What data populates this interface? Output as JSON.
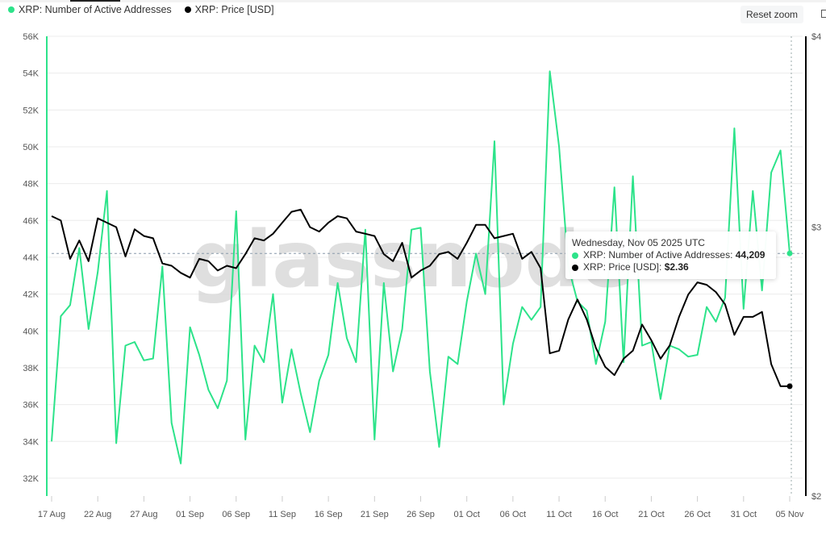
{
  "legend": [
    {
      "label": "XRP: Number of Active Addresses",
      "color": "#2de38a"
    },
    {
      "label": "XRP: Price [USD]",
      "color": "#000000"
    }
  ],
  "controls": {
    "reset_zoom": "Reset zoom"
  },
  "watermark": "glassnode",
  "tooltip": {
    "date": "Wednesday, Nov 05 2025 UTC",
    "rows": [
      {
        "label": "XRP: Number of Active Addresses:",
        "value": "44,209",
        "color": "#2de38a"
      },
      {
        "label": "XRP: Price [USD]:",
        "value": "$2.36",
        "color": "#000000"
      }
    ]
  },
  "colors": {
    "active_addresses": "#2de38a",
    "price": "#000000",
    "grid": "#ececec",
    "axis_text": "#555555"
  },
  "chart_data": {
    "type": "line",
    "title": "",
    "xlabel": "",
    "ylabel": "Number of Active Addresses",
    "y2label": "Price [USD]",
    "ylim": [
      31000,
      56000
    ],
    "y2lim": [
      2,
      4
    ],
    "y2scale": "log",
    "grid": true,
    "legend_position": "top-left",
    "x_start": "2025-08-17",
    "x_end": "2025-11-05",
    "x_ticks": [
      "17 Aug",
      "22 Aug",
      "27 Aug",
      "01 Sep",
      "06 Sep",
      "11 Sep",
      "16 Sep",
      "21 Sep",
      "26 Sep",
      "01 Oct",
      "06 Oct",
      "11 Oct",
      "16 Oct",
      "21 Oct",
      "26 Oct",
      "31 Oct",
      "05 Nov"
    ],
    "y_ticks": [
      "32K",
      "34K",
      "36K",
      "38K",
      "40K",
      "42K",
      "44K",
      "46K",
      "48K",
      "50K",
      "52K",
      "54K",
      "56K"
    ],
    "y2_ticks": [
      "$2",
      "$3",
      "$4"
    ],
    "series": [
      {
        "name": "XRP: Number of Active Addresses",
        "axis": "left",
        "values": [
          34000,
          40800,
          41400,
          44500,
          40100,
          43200,
          47600,
          33900,
          39200,
          39400,
          38400,
          38500,
          43500,
          35000,
          32800,
          40200,
          38700,
          36800,
          35800,
          37300,
          46500,
          34100,
          39200,
          38300,
          42000,
          36100,
          39000,
          36600,
          34500,
          37300,
          38700,
          42600,
          39600,
          38300,
          45500,
          34100,
          42600,
          37800,
          40100,
          45500,
          45600,
          37800,
          33700,
          38600,
          38200,
          41600,
          44200,
          42000,
          50300,
          36000,
          39300,
          41300,
          40600,
          41300,
          54100,
          50000,
          43500,
          41600,
          41100,
          38200,
          40500,
          47800,
          38300,
          48400,
          39200,
          39400,
          36300,
          39200,
          39000,
          38600,
          38700,
          41300,
          40500,
          41800,
          51000,
          41200,
          47600,
          42200,
          48600,
          49800,
          44209
        ]
      },
      {
        "name": "XRP: Price [USD]",
        "axis": "right",
        "values": [
          3.05,
          3.03,
          2.86,
          2.94,
          2.85,
          3.04,
          3.02,
          3.0,
          2.87,
          2.99,
          2.96,
          2.95,
          2.84,
          2.83,
          2.8,
          2.78,
          2.86,
          2.85,
          2.81,
          2.83,
          2.82,
          2.88,
          2.95,
          2.94,
          2.97,
          3.02,
          3.07,
          3.08,
          3.0,
          2.98,
          3.02,
          3.05,
          3.04,
          2.98,
          2.97,
          2.96,
          2.88,
          2.85,
          2.93,
          2.78,
          2.81,
          2.83,
          2.88,
          2.89,
          2.86,
          2.93,
          3.01,
          3.01,
          2.95,
          2.96,
          2.97,
          2.86,
          2.89,
          2.82,
          2.48,
          2.49,
          2.61,
          2.69,
          2.61,
          2.5,
          2.43,
          2.4,
          2.46,
          2.49,
          2.59,
          2.53,
          2.46,
          2.51,
          2.62,
          2.71,
          2.76,
          2.75,
          2.72,
          2.67,
          2.55,
          2.62,
          2.62,
          2.64,
          2.44,
          2.36,
          2.36
        ]
      }
    ]
  }
}
